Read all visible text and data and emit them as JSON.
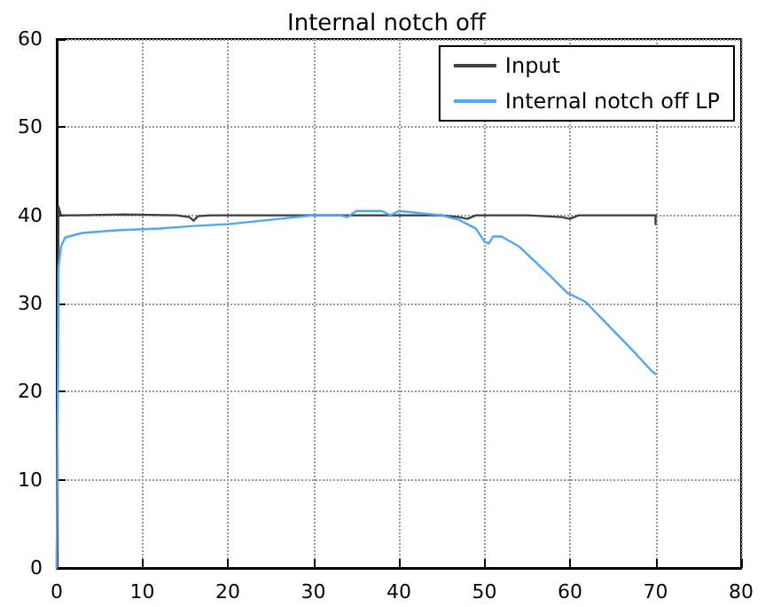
{
  "chart_data": {
    "type": "line",
    "title": "Internal notch off",
    "xlim": [
      0,
      80
    ],
    "xticks": [
      0,
      10,
      20,
      30,
      40,
      50,
      60,
      70,
      80
    ],
    "ylim": [
      0,
      60
    ],
    "yticks": [
      0,
      10,
      20,
      30,
      40,
      50,
      60
    ],
    "grid": true,
    "legend": "top right",
    "marker": "none",
    "line_style": "solid",
    "series": [
      {
        "name": "Input",
        "color": "#404040",
        "x": [
          0,
          0.2,
          0.5,
          2,
          8,
          14,
          15.5,
          16,
          16.5,
          18,
          25,
          30,
          35,
          40,
          45,
          47,
          48,
          49,
          55,
          59,
          60,
          61,
          65,
          70,
          70
        ],
        "values": [
          0,
          41,
          40,
          40,
          40.1,
          40,
          39.8,
          39.4,
          39.9,
          40,
          40,
          40,
          40,
          40,
          40,
          39.8,
          39.6,
          40,
          40,
          39.8,
          39.6,
          40,
          40,
          40,
          39
        ]
      },
      {
        "name": "Internal notch off LP",
        "color": "#4da6ff",
        "x": [
          0,
          0.2,
          0.5,
          1,
          3,
          7,
          12,
          16,
          20,
          25,
          30,
          33,
          34,
          35,
          38,
          39,
          40,
          45,
          47,
          49,
          50,
          50.5,
          51,
          52,
          54,
          57.6,
          59.7,
          61.8,
          64,
          67,
          69.6,
          70
        ],
        "values": [
          0,
          34,
          36.5,
          37.5,
          38,
          38.3,
          38.5,
          38.8,
          39,
          39.5,
          40,
          40,
          39.8,
          40.5,
          40.5,
          40,
          40.5,
          40,
          39.5,
          38.5,
          37,
          36.8,
          37.6,
          37.6,
          36.5,
          33.2,
          31.2,
          30.2,
          28,
          25,
          22.3,
          22
        ]
      }
    ]
  }
}
